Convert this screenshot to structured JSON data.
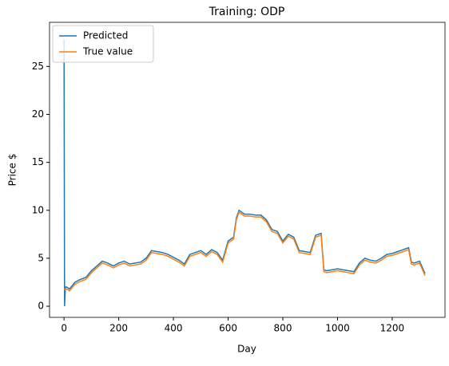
{
  "chart_data": {
    "type": "line",
    "title": "Training: ODP",
    "xlabel": "Day",
    "ylabel": "Price $",
    "x": [
      0,
      2,
      5,
      10,
      20,
      40,
      60,
      80,
      100,
      120,
      140,
      160,
      180,
      200,
      220,
      240,
      260,
      280,
      300,
      320,
      340,
      360,
      380,
      400,
      420,
      440,
      460,
      480,
      500,
      520,
      540,
      560,
      580,
      600,
      620,
      630,
      640,
      660,
      680,
      700,
      720,
      740,
      760,
      780,
      800,
      820,
      840,
      860,
      880,
      900,
      920,
      940,
      950,
      960,
      980,
      1000,
      1020,
      1040,
      1060,
      1080,
      1100,
      1120,
      1140,
      1160,
      1180,
      1200,
      1220,
      1240,
      1260,
      1270,
      1280,
      1300,
      1320
    ],
    "series": [
      {
        "name": "Predicted",
        "color": "#1f77b4",
        "values": [
          27.8,
          0.0,
          2.0,
          2.0,
          1.8,
          2.5,
          2.8,
          3.0,
          3.7,
          4.2,
          4.7,
          4.5,
          4.2,
          4.5,
          4.7,
          4.4,
          4.5,
          4.6,
          5.0,
          5.8,
          5.7,
          5.6,
          5.4,
          5.1,
          4.8,
          4.4,
          5.4,
          5.6,
          5.8,
          5.4,
          5.9,
          5.6,
          4.8,
          6.8,
          7.2,
          9.2,
          10.0,
          9.6,
          9.6,
          9.5,
          9.5,
          9.0,
          8.0,
          7.8,
          6.8,
          7.5,
          7.2,
          5.8,
          5.7,
          5.6,
          7.4,
          7.6,
          3.8,
          3.7,
          3.8,
          3.9,
          3.8,
          3.7,
          3.6,
          4.5,
          5.0,
          4.8,
          4.7,
          5.0,
          5.4,
          5.5,
          5.7,
          5.9,
          6.1,
          4.6,
          4.5,
          4.7,
          3.4
        ]
      },
      {
        "name": "True value",
        "color": "#ff7f0e",
        "values": [
          1.8,
          1.8,
          1.7,
          1.8,
          1.6,
          2.3,
          2.6,
          2.8,
          3.5,
          4.0,
          4.5,
          4.3,
          4.0,
          4.3,
          4.5,
          4.2,
          4.3,
          4.4,
          4.8,
          5.6,
          5.5,
          5.4,
          5.2,
          4.9,
          4.6,
          4.2,
          5.2,
          5.4,
          5.6,
          5.2,
          5.7,
          5.4,
          4.6,
          6.6,
          7.0,
          9.0,
          9.8,
          9.4,
          9.4,
          9.3,
          9.3,
          8.8,
          7.8,
          7.6,
          6.6,
          7.3,
          7.0,
          5.6,
          5.5,
          5.4,
          7.2,
          7.4,
          3.6,
          3.5,
          3.6,
          3.7,
          3.6,
          3.5,
          3.4,
          4.3,
          4.8,
          4.6,
          4.5,
          4.8,
          5.2,
          5.3,
          5.5,
          5.7,
          5.9,
          4.4,
          4.3,
          4.5,
          3.2
        ]
      }
    ],
    "xlim": [
      -53,
      1393
    ],
    "ylim": [
      -1.16,
      29.6
    ],
    "xticks": [
      0,
      200,
      400,
      600,
      800,
      1000,
      1200
    ],
    "yticks": [
      0,
      5,
      10,
      15,
      20,
      25
    ],
    "legend": "upper left"
  }
}
